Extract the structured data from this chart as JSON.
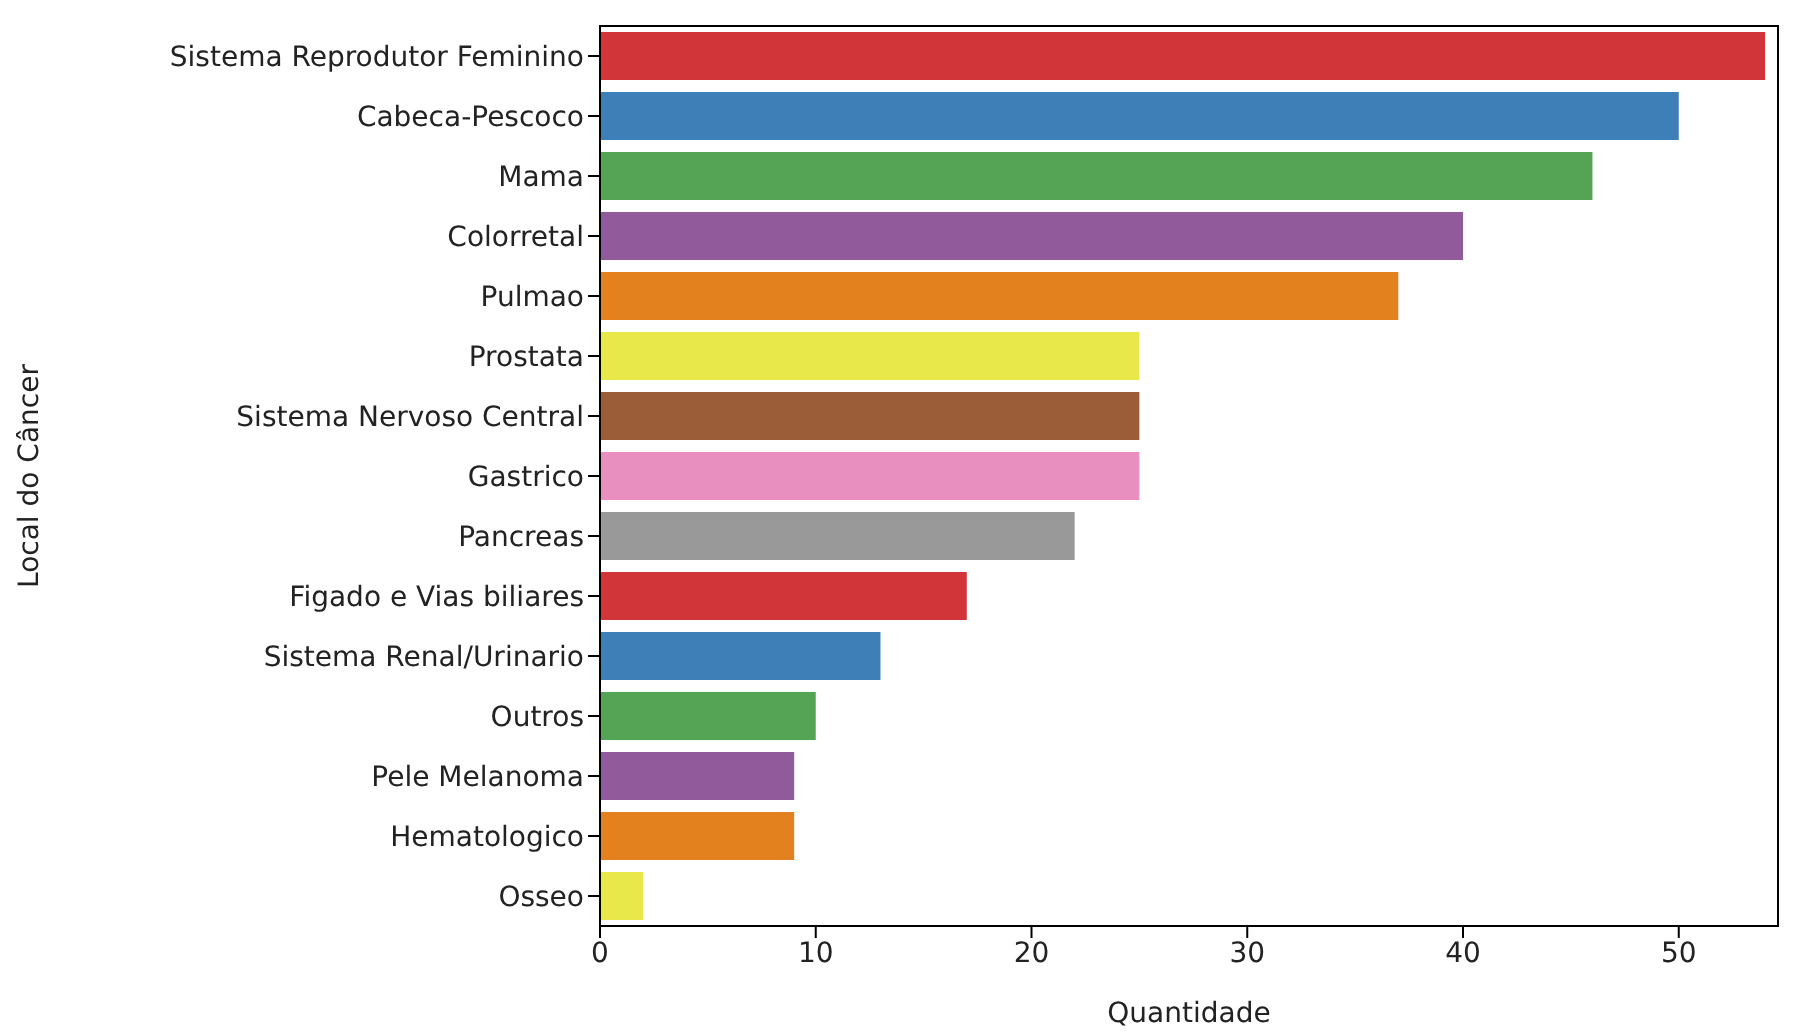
{
  "chart_data": {
    "type": "bar",
    "orientation": "horizontal",
    "xlabel": "Quantidade",
    "ylabel": "Local do Câncer",
    "categories": [
      "Sistema Reprodutor Feminino",
      "Cabeca-Pescoco",
      "Mama",
      "Colorretal",
      "Pulmao",
      "Prostata",
      "Sistema Nervoso Central",
      "Gastrico",
      "Pancreas",
      "Figado e Vias biliares",
      "Sistema Renal/Urinario",
      "Outros",
      "Pele Melanoma",
      "Hematologico",
      "Osseo"
    ],
    "values": [
      54,
      50,
      46,
      40,
      37,
      25,
      25,
      25,
      22,
      17,
      13,
      10,
      9,
      9,
      2
    ],
    "colors": [
      "#d23539",
      "#3d7fb6",
      "#55a455",
      "#915a9a",
      "#e3811f",
      "#e8e84b",
      "#9a5d38",
      "#e88fc0",
      "#999999",
      "#d23539",
      "#3d7fb6",
      "#55a455",
      "#915a9a",
      "#e3811f",
      "#e8e84b"
    ],
    "xlim": [
      0,
      54.6
    ],
    "xticks": [
      0,
      10,
      20,
      30,
      40,
      50
    ],
    "grid": false
  }
}
